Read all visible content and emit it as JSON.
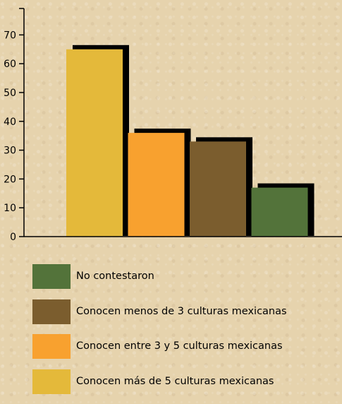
{
  "chart_data": {
    "type": "bar",
    "categories": [
      "Conocen más de 5 culturas mexicanas",
      "Conocen entre 3 y 5 culturas mexicanas",
      "Conocen menos de 3 culturas mexicanas",
      "No contestaron"
    ],
    "values": [
      65,
      36,
      33,
      17
    ],
    "colors": [
      "#e4b93a",
      "#f8a12f",
      "#7b5d2e",
      "#53733a"
    ],
    "shadow_color": "#000000",
    "ylim": [
      0,
      80
    ],
    "yticks": [
      0,
      10,
      20,
      30,
      40,
      50,
      60,
      70
    ],
    "xlabel": "",
    "ylabel": "",
    "title": "",
    "legend_order": [
      3,
      2,
      1,
      0
    ],
    "legend_position": "bottom"
  }
}
